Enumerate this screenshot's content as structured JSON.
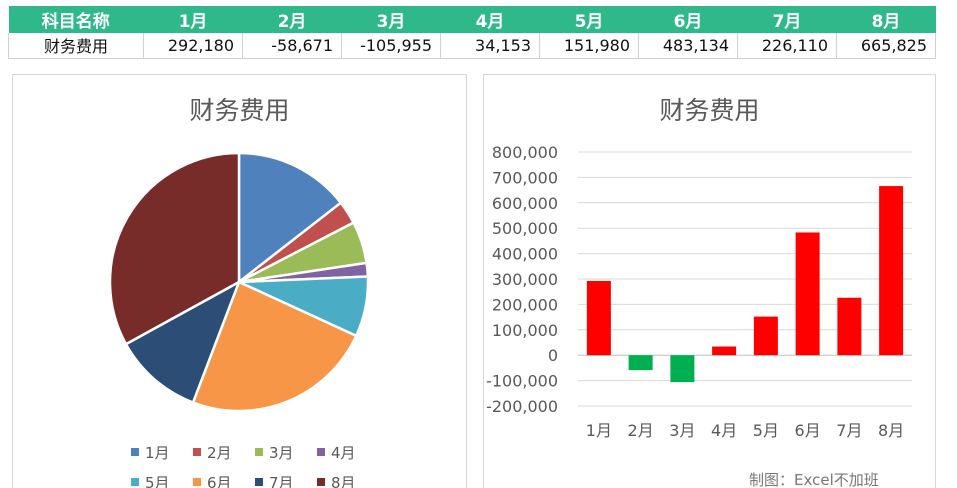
{
  "table": {
    "header": [
      "科目名称",
      "1月",
      "2月",
      "3月",
      "4月",
      "5月",
      "6月",
      "7月",
      "8月"
    ],
    "row": [
      "财务费用",
      "292,180",
      "-58,671",
      "-105,955",
      "34,153",
      "151,980",
      "483,134",
      "226,110",
      "665,825"
    ]
  },
  "chart_data": [
    {
      "type": "pie",
      "title": "财务费用",
      "categories": [
        "1月",
        "2月",
        "3月",
        "4月",
        "5月",
        "6月",
        "7月",
        "8月"
      ],
      "values": [
        292180,
        58671,
        105955,
        34153,
        151980,
        483134,
        226110,
        665825
      ],
      "colors": [
        "#4f81bd",
        "#c0504d",
        "#9bbb59",
        "#8064a2",
        "#4bacc6",
        "#f79646",
        "#2c4d75",
        "#772c2a"
      ],
      "legend": "bottom"
    },
    {
      "type": "bar",
      "title": "财务费用",
      "categories": [
        "1月",
        "2月",
        "3月",
        "4月",
        "5月",
        "6月",
        "7月",
        "8月"
      ],
      "values": [
        292180,
        -58671,
        -105955,
        34153,
        151980,
        483134,
        226110,
        665825
      ],
      "ylim": [
        -200000,
        800000
      ],
      "yticks": [
        "800,000",
        "700,000",
        "600,000",
        "500,000",
        "400,000",
        "300,000",
        "200,000",
        "100,000",
        "0",
        "-100,000",
        "-200,000"
      ],
      "positive_color": "#ff0000",
      "negative_color": "#00b050",
      "grid": true
    }
  ],
  "credit": "制图：Excel不加班"
}
